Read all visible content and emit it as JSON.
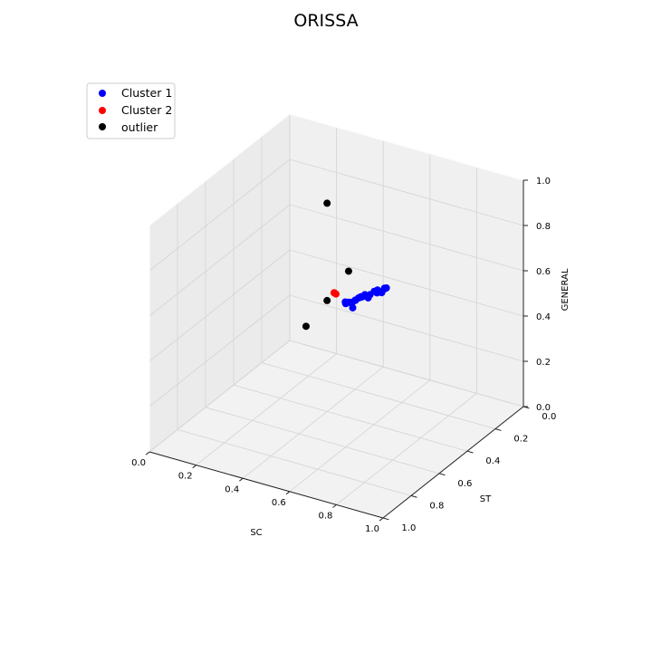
{
  "chart_data": {
    "type": "scatter",
    "projection": "3d",
    "title": "ORISSA",
    "xlabel": "SC",
    "ylabel": "ST",
    "zlabel": "GENERAL",
    "xlim": [
      0,
      1
    ],
    "ylim": [
      0,
      1
    ],
    "zlim": [
      0,
      1
    ],
    "ticks": [
      "0.0",
      "0.2",
      "0.4",
      "0.6",
      "0.8",
      "1.0"
    ],
    "grid": true,
    "legend_position": "top-left",
    "series": [
      {
        "name": "Cluster 1",
        "color": "#0000ff",
        "points": [
          [
            0.55,
            0.57,
            0.6
          ],
          [
            0.58,
            0.61,
            0.63
          ],
          [
            0.57,
            0.58,
            0.62
          ],
          [
            0.59,
            0.62,
            0.64
          ],
          [
            0.61,
            0.62,
            0.65
          ],
          [
            0.6,
            0.64,
            0.66
          ],
          [
            0.62,
            0.64,
            0.66
          ],
          [
            0.61,
            0.66,
            0.68
          ],
          [
            0.63,
            0.66,
            0.68
          ],
          [
            0.62,
            0.67,
            0.69
          ],
          [
            0.64,
            0.69,
            0.71
          ],
          [
            0.66,
            0.7,
            0.72
          ],
          [
            0.7,
            0.69,
            0.69
          ],
          [
            0.68,
            0.73,
            0.75
          ],
          [
            0.7,
            0.73,
            0.75
          ],
          [
            0.74,
            0.78,
            0.78
          ],
          [
            0.73,
            0.8,
            0.81
          ],
          [
            0.76,
            0.8,
            0.81
          ],
          [
            0.79,
            0.85,
            0.86
          ],
          [
            0.81,
            0.86,
            0.86
          ],
          [
            0.84,
            0.91,
            0.91
          ],
          [
            0.86,
            0.91,
            0.9
          ],
          [
            0.87,
            0.93,
            0.93
          ],
          [
            0.89,
            0.94,
            0.94
          ],
          [
            0.91,
            0.96,
            0.96
          ]
        ]
      },
      {
        "name": "Cluster 2",
        "color": "#ff0000",
        "points": [
          [
            0.35,
            0.4,
            0.5
          ],
          [
            0.37,
            0.42,
            0.51
          ]
        ]
      },
      {
        "name": "outlier",
        "color": "#000000",
        "points": [
          [
            0.55,
            0.4,
            0.45
          ],
          [
            0.4,
            0.4,
            0.92
          ],
          [
            0.33,
            0.45,
            0.6
          ],
          [
            0.4,
            0.4,
            0.49
          ]
        ]
      }
    ]
  }
}
